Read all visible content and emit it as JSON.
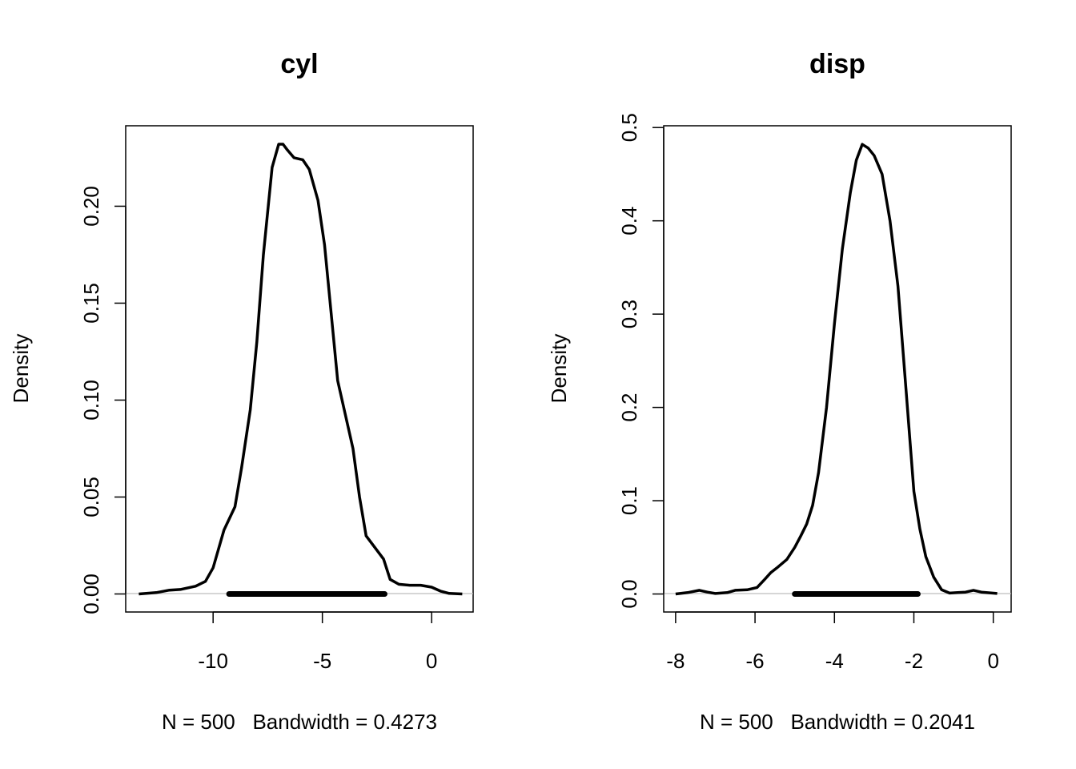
{
  "chart_data": [
    {
      "type": "line",
      "title": "cyl",
      "xlabel": "N = 500   Bandwidth = 0.4273",
      "ylabel": "Density",
      "xlim": [
        -14.0,
        1.9
      ],
      "ylim": [
        -0.0093,
        0.2415
      ],
      "xticks": [
        -10,
        -5,
        0
      ],
      "xtick_labels": [
        "-10",
        "-5",
        "0"
      ],
      "yticks": [
        0.0,
        0.05,
        0.1,
        0.15,
        0.2
      ],
      "ytick_labels": [
        "0.00",
        "0.05",
        "0.10",
        "0.15",
        "0.20"
      ],
      "grid": false,
      "baseline": 0,
      "rug_range": [
        -9.27,
        -2.15
      ],
      "series": [
        {
          "x": [
            -13.4,
            -12.6,
            -12.0,
            -11.5,
            -10.8,
            -10.35,
            -10.0,
            -9.5,
            -9.0,
            -8.7,
            -8.3,
            -8.0,
            -7.7,
            -7.3,
            -7.0,
            -6.8,
            -6.6,
            -6.3,
            -5.9,
            -5.6,
            -5.2,
            -4.9,
            -4.6,
            -4.3,
            -4.0,
            -3.6,
            -3.3,
            -3.0,
            -2.6,
            -2.2,
            -1.9,
            -1.5,
            -1.0,
            -0.5,
            0.0,
            0.4,
            0.8,
            1.4
          ],
          "y": [
            0.0,
            0.0007,
            0.002,
            0.0023,
            0.004,
            0.0065,
            0.0135,
            0.033,
            0.045,
            0.065,
            0.095,
            0.13,
            0.175,
            0.22,
            0.232,
            0.232,
            0.229,
            0.225,
            0.224,
            0.219,
            0.203,
            0.18,
            0.145,
            0.11,
            0.095,
            0.075,
            0.05,
            0.03,
            0.024,
            0.018,
            0.0075,
            0.005,
            0.0045,
            0.0045,
            0.0035,
            0.0015,
            0.0003,
            0.0
          ]
        }
      ]
    },
    {
      "type": "line",
      "title": "disp",
      "xlabel": "N = 500   Bandwidth = 0.2041",
      "ylabel": "Density",
      "xlim": [
        -8.3,
        0.45
      ],
      "ylim": [
        -0.0193,
        0.5019
      ],
      "xticks": [
        -8,
        -6,
        -4,
        -2,
        0
      ],
      "xtick_labels": [
        "-8",
        "-6",
        "-4",
        "-2",
        "0"
      ],
      "yticks": [
        0.0,
        0.1,
        0.2,
        0.3,
        0.4,
        0.5
      ],
      "ytick_labels": [
        "0.0",
        "0.1",
        "0.2",
        "0.3",
        "0.4",
        "0.5"
      ],
      "grid": false,
      "baseline": 0,
      "rug_range": [
        -5.0,
        -1.9
      ],
      "series": [
        {
          "x": [
            -8.0,
            -7.7,
            -7.4,
            -7.2,
            -7.0,
            -6.7,
            -6.5,
            -6.2,
            -5.95,
            -5.75,
            -5.6,
            -5.45,
            -5.2,
            -5.0,
            -4.85,
            -4.7,
            -4.55,
            -4.4,
            -4.2,
            -4.0,
            -3.8,
            -3.6,
            -3.45,
            -3.3,
            -3.15,
            -3.0,
            -2.8,
            -2.6,
            -2.4,
            -2.2,
            -2.0,
            -1.85,
            -1.7,
            -1.5,
            -1.3,
            -1.1,
            -0.9,
            -0.7,
            -0.5,
            -0.3,
            0.1
          ],
          "y": [
            0.0,
            0.0015,
            0.004,
            0.002,
            0.0005,
            0.0015,
            0.004,
            0.0045,
            0.007,
            0.016,
            0.023,
            0.028,
            0.037,
            0.05,
            0.062,
            0.075,
            0.095,
            0.13,
            0.2,
            0.29,
            0.37,
            0.43,
            0.465,
            0.482,
            0.478,
            0.47,
            0.45,
            0.4,
            0.33,
            0.22,
            0.11,
            0.07,
            0.04,
            0.018,
            0.0045,
            0.001,
            0.0015,
            0.002,
            0.004,
            0.002,
            0.0005
          ]
        }
      ]
    }
  ]
}
